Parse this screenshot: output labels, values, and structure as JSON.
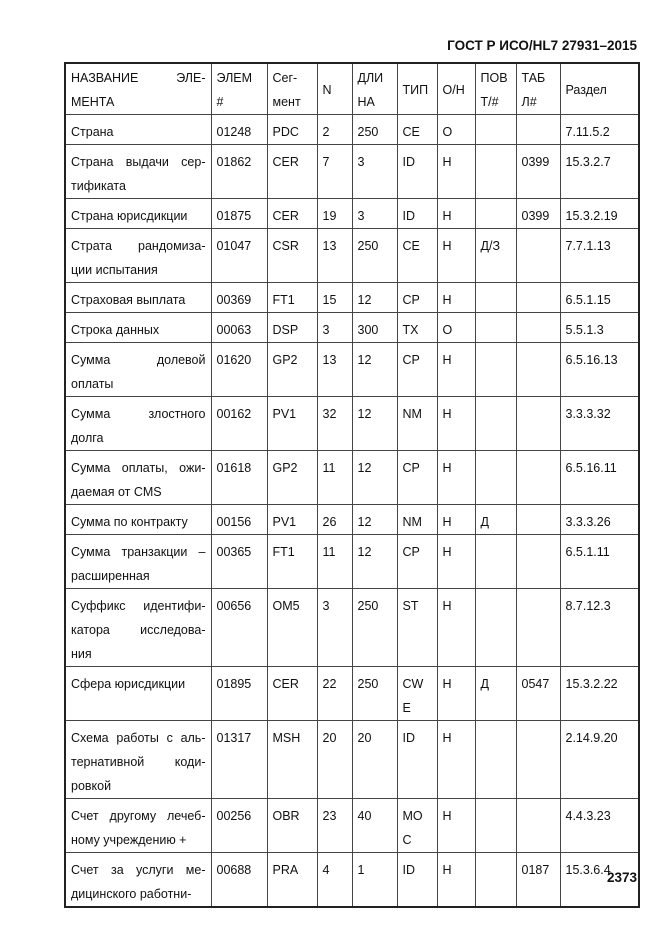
{
  "header": "ГОСТ Р ИСО/HL7 27931–2015",
  "page_number": "2373",
  "columns": [
    [
      "НАЗВАНИЕ ЭЛЕ-",
      "МЕНТА"
    ],
    [
      "ЭЛЕМ",
      "#"
    ],
    [
      "Сег-",
      "мент"
    ],
    [
      "N"
    ],
    [
      "ДЛИ",
      "НА"
    ],
    [
      "ТИП"
    ],
    [
      "О/Н"
    ],
    [
      "ПОВ",
      "Т/#"
    ],
    [
      "ТАБ",
      "Л#"
    ],
    [
      "Раздел"
    ]
  ],
  "rows": [
    {
      "name": [
        "Страна"
      ],
      "elem": "01248",
      "seg": "PDC",
      "n": "2",
      "len": [
        "250"
      ],
      "type": [
        "CE"
      ],
      "on": "О",
      "rep": "",
      "tbl": "",
      "section": "7.11.5.2"
    },
    {
      "name": [
        "Страна выдачи сер-",
        "тификата"
      ],
      "elem": "01862",
      "seg": "CER",
      "n": "7",
      "len": [
        "3"
      ],
      "type": [
        "ID"
      ],
      "on": "Н",
      "rep": "",
      "tbl": "0399",
      "section": "15.3.2.7"
    },
    {
      "name": [
        "Страна юрисдикции"
      ],
      "elem": "01875",
      "seg": "CER",
      "n": "19",
      "len": [
        "3"
      ],
      "type": [
        "ID"
      ],
      "on": "Н",
      "rep": "",
      "tbl": "0399",
      "section": "15.3.2.19"
    },
    {
      "name": [
        "Страта рандомиза-",
        "ции испытания"
      ],
      "elem": "01047",
      "seg": "CSR",
      "n": "13",
      "len": [
        "250"
      ],
      "type": [
        "CE"
      ],
      "on": "Н",
      "rep": "Д/З",
      "tbl": "",
      "section": "7.7.1.13"
    },
    {
      "name": [
        "Страховая выплата"
      ],
      "elem": "00369",
      "seg": "FT1",
      "n": "15",
      "len": [
        "12"
      ],
      "type": [
        "CP"
      ],
      "on": "Н",
      "rep": "",
      "tbl": "",
      "section": "6.5.1.15"
    },
    {
      "name": [
        "Строка данных"
      ],
      "elem": "00063",
      "seg": "DSP",
      "n": "3",
      "len": [
        "300"
      ],
      "type": [
        "TX"
      ],
      "on": "О",
      "rep": "",
      "tbl": "",
      "section": "5.5.1.3"
    },
    {
      "name": [
        "Сумма долевой",
        "оплаты"
      ],
      "elem": "01620",
      "seg": "GP2",
      "n": "13",
      "len": [
        "12"
      ],
      "type": [
        "CP"
      ],
      "on": "Н",
      "rep": "",
      "tbl": "",
      "section": "6.5.16.13"
    },
    {
      "name": [
        "Сумма злостного",
        "долга"
      ],
      "elem": "00162",
      "seg": "PV1",
      "n": "32",
      "len": [
        "12"
      ],
      "type": [
        "NM"
      ],
      "on": "Н",
      "rep": "",
      "tbl": "",
      "section": "3.3.3.32"
    },
    {
      "name": [
        "Сумма оплаты, ожи-",
        "даемая от CMS"
      ],
      "elem": "01618",
      "seg": "GP2",
      "n": "11",
      "len": [
        "12"
      ],
      "type": [
        "CP"
      ],
      "on": "Н",
      "rep": "",
      "tbl": "",
      "section": "6.5.16.11"
    },
    {
      "name": [
        "Сумма по контракту"
      ],
      "elem": "00156",
      "seg": "PV1",
      "n": "26",
      "len": [
        "12"
      ],
      "type": [
        "NM"
      ],
      "on": "Н",
      "rep": "Д",
      "tbl": "",
      "section": "3.3.3.26"
    },
    {
      "name": [
        "Сумма транзакции –",
        "расширенная"
      ],
      "elem": "00365",
      "seg": "FT1",
      "n": "11",
      "len": [
        "12"
      ],
      "type": [
        "CP"
      ],
      "on": "Н",
      "rep": "",
      "tbl": "",
      "section": "6.5.1.11"
    },
    {
      "name": [
        "Суффикс идентифи-",
        "катора исследова-",
        "ния"
      ],
      "elem": "00656",
      "seg": "OM5",
      "n": "3",
      "len": [
        "250"
      ],
      "type": [
        "ST"
      ],
      "on": "Н",
      "rep": "",
      "tbl": "",
      "section": "8.7.12.3"
    },
    {
      "name": [
        "Сфера юрисдикции"
      ],
      "elem": "01895",
      "seg": "CER",
      "n": "22",
      "len": [
        "250"
      ],
      "type": [
        "CW",
        "E"
      ],
      "on": "Н",
      "rep": "Д",
      "tbl": "0547",
      "section": "15.3.2.22"
    },
    {
      "name": [
        "Схема работы с аль-",
        "тернативной коди-",
        "ровкой"
      ],
      "elem": "01317",
      "seg": "MSH",
      "n": "20",
      "len": [
        "20"
      ],
      "type": [
        "ID"
      ],
      "on": "Н",
      "rep": "",
      "tbl": "",
      "section": "2.14.9.20"
    },
    {
      "name": [
        "Счет другому лечеб-",
        "ному учреждению +"
      ],
      "elem": "00256",
      "seg": "OBR",
      "n": "23",
      "len": [
        "40"
      ],
      "type": [
        "MO",
        "C"
      ],
      "on": "Н",
      "rep": "",
      "tbl": "",
      "section": "4.4.3.23"
    },
    {
      "name": [
        "Счет за услуги ме-",
        "дицинского работни-"
      ],
      "elem": "00688",
      "seg": "PRA",
      "n": "4",
      "len": [
        "1"
      ],
      "type": [
        "ID"
      ],
      "on": "Н",
      "rep": "",
      "tbl": "0187",
      "section": "15.3.6.4"
    }
  ]
}
